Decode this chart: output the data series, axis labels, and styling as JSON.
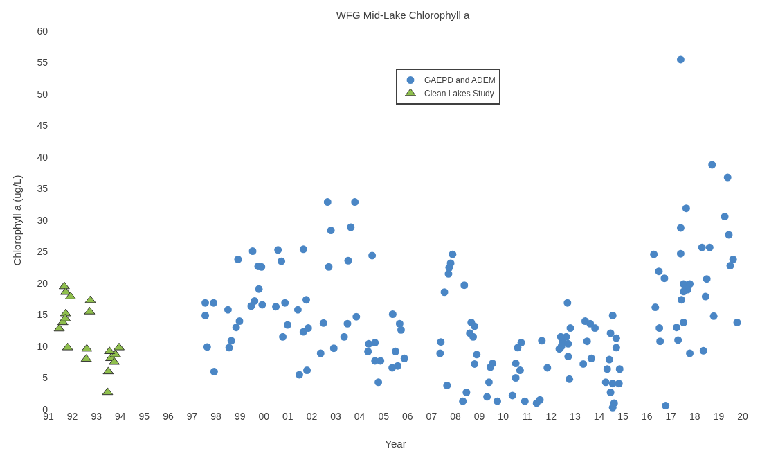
{
  "chart_data": {
    "type": "scatter",
    "title": "WFG Mid-Lake Chlorophyll a",
    "xlabel": "Year",
    "ylabel": "Chlorophyll a (ug/L)",
    "xlim": [
      1991,
      2020
    ],
    "xticks": [
      {
        "value": 1991,
        "label": "91"
      },
      {
        "value": 1992,
        "label": "92"
      },
      {
        "value": 1993,
        "label": "93"
      },
      {
        "value": 1994,
        "label": "94"
      },
      {
        "value": 1995,
        "label": "95"
      },
      {
        "value": 1996,
        "label": "96"
      },
      {
        "value": 1997,
        "label": "97"
      },
      {
        "value": 1998,
        "label": "98"
      },
      {
        "value": 1999,
        "label": "99"
      },
      {
        "value": 2000,
        "label": "00"
      },
      {
        "value": 2001,
        "label": "01"
      },
      {
        "value": 2002,
        "label": "02"
      },
      {
        "value": 2003,
        "label": "03"
      },
      {
        "value": 2004,
        "label": "04"
      },
      {
        "value": 2005,
        "label": "05"
      },
      {
        "value": 2006,
        "label": "06"
      },
      {
        "value": 2007,
        "label": "07"
      },
      {
        "value": 2008,
        "label": "08"
      },
      {
        "value": 2009,
        "label": "09"
      },
      {
        "value": 2010,
        "label": "10"
      },
      {
        "value": 2011,
        "label": "11"
      },
      {
        "value": 2012,
        "label": "12"
      },
      {
        "value": 2013,
        "label": "13"
      },
      {
        "value": 2014,
        "label": "14"
      },
      {
        "value": 2015,
        "label": "15"
      },
      {
        "value": 2016,
        "label": "16"
      },
      {
        "value": 2017,
        "label": "17"
      },
      {
        "value": 2018,
        "label": "18"
      },
      {
        "value": 2019,
        "label": "19"
      },
      {
        "value": 2020,
        "label": "20"
      }
    ],
    "ylim": [
      0,
      60
    ],
    "yticks": [
      0,
      5,
      10,
      15,
      20,
      25,
      30,
      35,
      40,
      45,
      50,
      55,
      60
    ],
    "grid": false,
    "legend": "top",
    "series": [
      {
        "name": "GAEPD and ADEM",
        "color": "#4a86c5",
        "marker": "circle",
        "x": [
          2002.66,
          2003.8,
          2002.8,
          2003.63,
          2001.65,
          2000.59,
          1999.53,
          1998.92,
          2000.73,
          1999.76,
          1999.9,
          2002.71,
          2003.52,
          2004.52,
          1999.79,
          1997.55,
          1997.9,
          1997.55,
          1998.5,
          1999.61,
          1999.47,
          1999.93,
          2000.5,
          2000.88,
          2001.77,
          2001.42,
          1998.98,
          1998.84,
          2000.99,
          2002.49,
          2001.65,
          2001.85,
          2003.86,
          2003.49,
          2000.79,
          2003.35,
          1997.63,
          1998.64,
          1998.55,
          2002.37,
          2002.92,
          1997.92,
          2001.48,
          2001.8,
          2004.38,
          2004.64,
          2004.35,
          2004.64,
          2004.78,
          2005.38,
          2005.67,
          2005.73,
          2005.5,
          2005.87,
          2005.36,
          2005.59,
          2004.87,
          2007.88,
          2007.8,
          2007.74,
          2007.71,
          2007.54,
          2008.37,
          2007.39,
          2007.36,
          2007.65,
          2008.66,
          2008.8,
          2008.6,
          2008.74,
          2008.89,
          2008.8,
          2008.46,
          2008.31,
          2009.55,
          2009.46,
          2009.4,
          2009.32,
          2009.75,
          2010.75,
          2010.6,
          2010.52,
          2010.7,
          2010.52,
          2010.38,
          2010.9,
          2011.39,
          2011.53,
          2011.61,
          2011.84,
          2012.68,
          2012.34,
          2012.48,
          2012.63,
          2012.8,
          2012.71,
          2012.4,
          2012.43,
          2012.71,
          2012.76,
          2013.42,
          2013.63,
          2013.83,
          2013.5,
          2013.34,
          2013.68,
          2014.57,
          2014.48,
          2014.72,
          2014.72,
          2014.43,
          2014.34,
          2014.86,
          2014.28,
          2014.57,
          2014.83,
          2014.48,
          2014.63,
          2014.57,
          2017.41,
          2018.72,
          2019.37,
          2017.64,
          2019.25,
          2017.41,
          2019.42,
          2018.3,
          2018.62,
          2016.29,
          2017.41,
          2019.6,
          2019.48,
          2016.5,
          2016.73,
          2018.5,
          2017.53,
          2017.79,
          2017.7,
          2017.53,
          2017.44,
          2018.45,
          2016.35,
          2018.79,
          2019.77,
          2017.53,
          2016.52,
          2017.24,
          2016.55,
          2017.3,
          2017.79,
          2018.36,
          2016.78
        ],
        "values": [
          32.9,
          32.9,
          28.4,
          28.9,
          25.4,
          25.3,
          25.1,
          23.8,
          23.5,
          22.7,
          22.6,
          22.6,
          23.6,
          24.4,
          19.1,
          16.9,
          16.9,
          14.9,
          15.8,
          17.2,
          16.4,
          16.6,
          16.3,
          16.9,
          17.4,
          15.8,
          14.0,
          13.0,
          13.4,
          13.7,
          12.3,
          12.9,
          14.7,
          13.6,
          11.5,
          11.5,
          9.9,
          10.9,
          9.8,
          8.9,
          9.7,
          6.0,
          5.5,
          6.2,
          10.4,
          10.6,
          9.2,
          7.7,
          4.3,
          15.1,
          13.6,
          12.6,
          9.2,
          8.1,
          6.6,
          6.9,
          7.7,
          24.6,
          23.2,
          22.5,
          21.5,
          18.6,
          19.7,
          10.7,
          8.9,
          3.8,
          13.8,
          13.2,
          12.1,
          11.5,
          8.7,
          7.2,
          2.7,
          1.3,
          7.3,
          6.7,
          4.3,
          2.0,
          1.3,
          10.6,
          9.8,
          7.3,
          6.2,
          5.0,
          2.2,
          1.3,
          1.0,
          1.5,
          10.9,
          6.6,
          16.9,
          9.6,
          10.7,
          11.5,
          12.9,
          10.4,
          11.5,
          10.0,
          8.4,
          4.8,
          14.0,
          13.6,
          12.9,
          10.8,
          7.2,
          8.1,
          14.9,
          12.1,
          11.3,
          9.8,
          7.9,
          6.4,
          6.4,
          4.3,
          4.1,
          4.1,
          2.7,
          1.0,
          0.3,
          55.5,
          38.8,
          36.8,
          31.9,
          30.6,
          28.8,
          27.7,
          25.7,
          25.7,
          24.6,
          24.7,
          23.8,
          22.8,
          21.9,
          20.8,
          20.7,
          19.9,
          19.9,
          19.0,
          18.7,
          17.4,
          17.9,
          16.2,
          14.8,
          13.8,
          13.8,
          12.9,
          13.0,
          10.8,
          11.0,
          8.9,
          9.3,
          0.6
        ]
      },
      {
        "name": "Clean Lakes Study",
        "color": "#8fbf4d",
        "marker": "triangle",
        "x": [
          1991.66,
          1991.72,
          1991.92,
          1991.72,
          1991.6,
          1991.7,
          1991.45,
          1991.8,
          1992.6,
          1992.58,
          1992.75,
          1992.72,
          1993.47,
          1993.5,
          1993.6,
          1993.8,
          1993.95,
          1993.55,
          1993.75
        ],
        "values": [
          19.5,
          18.6,
          17.9,
          15.2,
          13.8,
          14.4,
          12.8,
          9.8,
          9.6,
          8.0,
          17.3,
          15.5,
          2.7,
          6.0,
          8.1,
          8.7,
          9.8,
          9.2,
          7.5
        ]
      }
    ]
  }
}
